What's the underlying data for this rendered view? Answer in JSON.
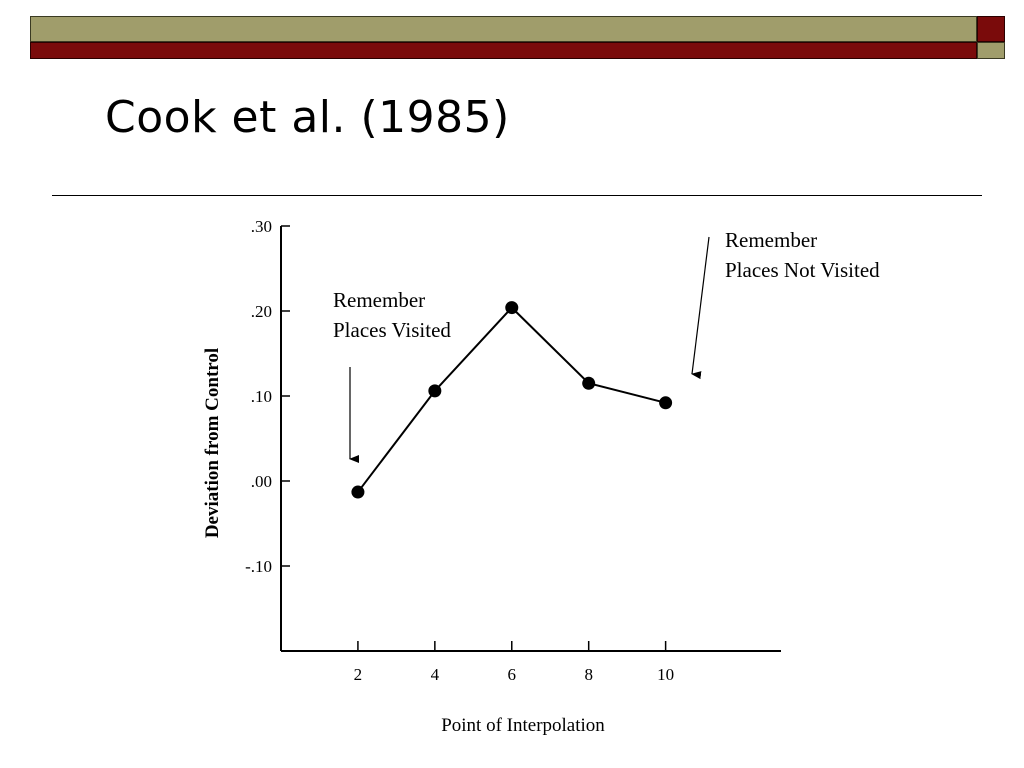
{
  "slide": {
    "title": "Cook et al. (1985)"
  },
  "annotations": {
    "visited": {
      "line1": "Remember",
      "line2": "Places Visited"
    },
    "not_visited": {
      "line1": "Remember",
      "line2": "Places Not Visited"
    }
  },
  "colors": {
    "olive": "#a09d6b",
    "maroon": "#7a0b0b"
  },
  "chart_data": {
    "type": "line",
    "xlabel": "Point of Interpolation",
    "ylabel": "Deviation from Control",
    "x": [
      2,
      4,
      6,
      8,
      10
    ],
    "series": [
      {
        "values": [
          -0.013,
          0.106,
          0.204,
          0.115,
          0.092
        ]
      }
    ],
    "x_ticks": [
      2,
      4,
      6,
      8,
      10
    ],
    "x_tick_labels": [
      "2",
      "4",
      "6",
      "8",
      "10"
    ],
    "y_ticks": [
      0.3,
      0.2,
      0.1,
      0.0,
      -0.1
    ],
    "y_tick_labels": [
      ".30",
      ".20",
      ".10",
      ".00",
      "-.10"
    ],
    "xlim": [
      0,
      13
    ],
    "ylim": [
      -0.2,
      0.3
    ],
    "grid": false
  }
}
